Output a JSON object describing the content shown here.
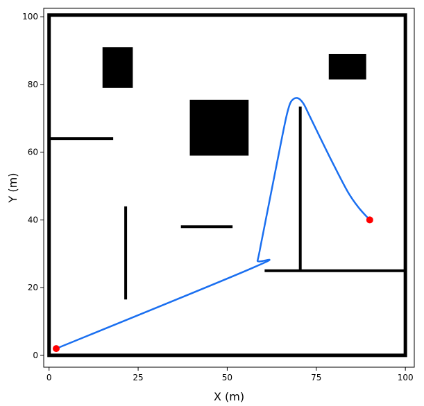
{
  "chart_data": {
    "type": "line",
    "title": "",
    "xlabel": "X (m)",
    "ylabel": "Y (m)",
    "xlim": [
      -1.5,
      102.5
    ],
    "ylim": [
      -3.5,
      102.5
    ],
    "xticks": [
      0,
      25,
      50,
      75,
      100
    ],
    "yticks": [
      0,
      20,
      40,
      60,
      80,
      100
    ],
    "grid": false,
    "legend": "none",
    "colors": {
      "boundary": "#000000",
      "obstacle": "#000000",
      "path": "#1a6ff0",
      "endpoint": "#ff0000"
    },
    "boundary": [
      [
        0,
        0
      ],
      [
        100,
        0
      ],
      [
        100,
        100.5
      ],
      [
        0,
        100.5
      ]
    ],
    "rect_obstacles": [
      {
        "x0": 15,
        "x1": 23.5,
        "y0": 79,
        "y1": 91
      },
      {
        "x0": 39.5,
        "x1": 56,
        "y0": 59,
        "y1": 75.5
      },
      {
        "x0": 78.5,
        "x1": 89,
        "y0": 81.5,
        "y1": 89
      }
    ],
    "wall_obstacles": [
      {
        "x0": 0,
        "y0": 64,
        "x1": 18,
        "y1": 64
      },
      {
        "x0": 21.5,
        "y0": 16.5,
        "x1": 21.5,
        "y1": 44
      },
      {
        "x0": 37,
        "y0": 38,
        "x1": 51.5,
        "y1": 38
      },
      {
        "x0": 60.5,
        "y0": 25,
        "x1": 100,
        "y1": 25
      },
      {
        "x0": 70.5,
        "y0": 25,
        "x1": 70.5,
        "y1": 73.5
      }
    ],
    "path": {
      "x": [
        2,
        57.5,
        58.5,
        59.5,
        61.0,
        62.5,
        64.0,
        65.5,
        66.7,
        67.7,
        68.7,
        69.7,
        70.7,
        71.7,
        73.0,
        76.0,
        80.0,
        84.0,
        87.0,
        90
      ],
      "y": [
        2,
        26.0,
        28.0,
        33.0,
        41.0,
        49.0,
        57.0,
        65.0,
        71.0,
        74.5,
        75.8,
        76.0,
        75.3,
        73.8,
        71.0,
        64.5,
        56.0,
        48.0,
        43.5,
        40
      ]
    },
    "endpoints": [
      {
        "x": 2,
        "y": 2
      },
      {
        "x": 90,
        "y": 40
      }
    ]
  }
}
